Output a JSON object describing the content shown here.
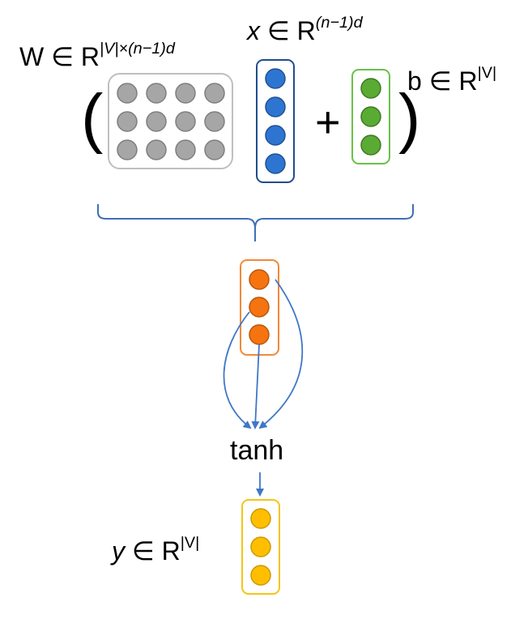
{
  "labels": {
    "w_base": "W ∈ R",
    "w_sup": "|V|×(n−1)d",
    "x_var": "x",
    "x_set": " ∈ R",
    "x_sup": "(n−1)d",
    "b_base": "b ∈ R",
    "b_sup": "|V|",
    "y_var": "y",
    "y_set": " ∈ R",
    "y_sup": "|V|",
    "tanh": "tanh",
    "open_paren": "(",
    "close_paren": ")",
    "plus": "+"
  },
  "colors": {
    "weight_node": "#a6a6a6",
    "weight_node_stroke": "#7f7f7f",
    "weight_box": "#bfbfbf",
    "input_node": "#2e75d2",
    "input_box": "#1f4e8c",
    "bias_node": "#5aab33",
    "bias_box": "#6cc04a",
    "hidden_node": "#f57410",
    "hidden_box": "#f08a3a",
    "output_node": "#ffbf00",
    "output_box": "#f5c518",
    "arrow": "#3f77c8",
    "brace": "#3f6fb5"
  },
  "structure": {
    "weight_rows": 3,
    "weight_cols": 4,
    "input_nodes": 4,
    "bias_nodes": 3,
    "hidden_nodes": 3,
    "output_nodes": 3
  }
}
